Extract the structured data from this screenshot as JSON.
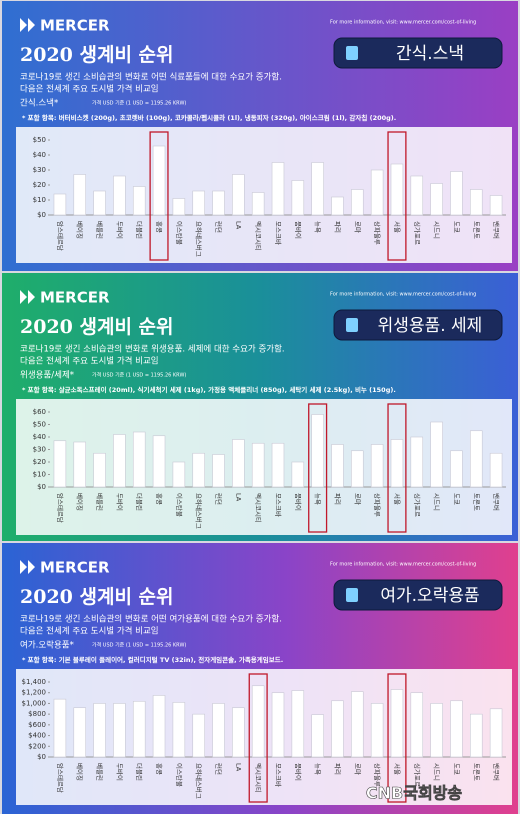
{
  "header": {
    "brand": "MERCER",
    "info": "For more information, visit: www.mercer.com/cost-of-living"
  },
  "footer": "CNB국회방송",
  "chart_data": [
    {
      "type": "bar",
      "title": "2020 생계비 순위",
      "badge": "간식.스낵",
      "description": [
        "코로나19로 생긴 소비습관의 변화로 어떤 식료품들에 대한 수요가 증가함.",
        "다음은 전세계 주요 도시별 가격 비교임"
      ],
      "subtitle_label": "간식.스낵*",
      "subtitle_note": "가격 USD 기준 (1 USD = 1195.26 KRW)",
      "items": "* 포함 항목: 버터비스켓 (200g), 초코렛바 (100g), 코카콜라/펩시콜라 (1l), 냉동피자 (320g), 아이스크림 (1l), 감자칩 (200g).",
      "categories": [
        "암스테르담",
        "베이징",
        "베를린",
        "두바이",
        "더블린",
        "홍콩",
        "이스탄불",
        "요하네스버그",
        "런던",
        "LA",
        "멕시코시티",
        "모스크바",
        "뭄바이",
        "뉴욕",
        "파리",
        "로마",
        "상파울루",
        "서울",
        "싱가포르",
        "시드니",
        "도쿄",
        "토론토",
        "밴쿠버"
      ],
      "values": [
        14,
        27,
        16,
        26,
        19,
        46,
        11,
        16,
        16,
        27,
        15,
        35,
        23,
        35,
        12,
        17,
        30,
        34,
        26,
        21,
        29,
        17,
        13
      ],
      "color": "#ffffff",
      "highlight": [
        5,
        17
      ],
      "ylim": [
        0,
        50
      ],
      "yticks": [
        {
          "value": 0,
          "label": "$0"
        },
        {
          "value": 10,
          "label": "$10"
        },
        {
          "value": 20,
          "label": "$20"
        },
        {
          "value": 30,
          "label": "$30"
        },
        {
          "value": 40,
          "label": "$40"
        },
        {
          "value": 50,
          "label": "$50"
        }
      ]
    },
    {
      "type": "bar",
      "title": "2020 생계비 순위",
      "badge": "위생용품. 세제",
      "description": [
        "코로나19로 생긴 소비습관의 변화로 위생용품. 세제에 대한 수요가 증가함.",
        "다음은 전세계 주요 도시별 가격 비교임"
      ],
      "subtitle_label": "위생용품/세제*",
      "subtitle_note": "가격 USD 기준 (1 USD = 1195.26 KRW)",
      "items": "* 포함 항목: 살균소독스프레이 (20ml), 식기세척기 세제 (1kg), 가정용 액체클리너 (850g), 세탁기 세제 (2.5kg), 비누 (150g).",
      "categories": [
        "암스테르담",
        "베이징",
        "베를린",
        "두바이",
        "더블린",
        "홍콩",
        "이스탄불",
        "요하네스버그",
        "런던",
        "LA",
        "멕시코시티",
        "모스크바",
        "뭄바이",
        "뉴욕",
        "파리",
        "로마",
        "상파울루",
        "서울",
        "싱가포르",
        "시드니",
        "도쿄",
        "토론토",
        "밴쿠버"
      ],
      "values": [
        37,
        36,
        27,
        42,
        44,
        41,
        20,
        27,
        26,
        38,
        35,
        35,
        20,
        58,
        34,
        29,
        34,
        38,
        40,
        52,
        29,
        45,
        27
      ],
      "color": "#ffffff",
      "highlight": [
        13,
        17
      ],
      "ylim": [
        0,
        60
      ],
      "yticks": [
        {
          "value": 0,
          "label": "$0"
        },
        {
          "value": 10,
          "label": "$10"
        },
        {
          "value": 20,
          "label": "$20"
        },
        {
          "value": 30,
          "label": "$30"
        },
        {
          "value": 40,
          "label": "$40"
        },
        {
          "value": 50,
          "label": "$50"
        },
        {
          "value": 60,
          "label": "$60"
        }
      ]
    },
    {
      "type": "bar",
      "title": "2020 생계비 순위",
      "badge": "여가.오락용품",
      "description": [
        "코로나19로 생긴 소비습관의 변화로 어떤 여가용품에 대한 수요가 증가함.",
        "다음은 전세계 주요 도시별 가격 비교임"
      ],
      "subtitle_label": "여가.오락용품*",
      "subtitle_note": "가격 USD 기준 (1 USD = 1195.26 KRW)",
      "items": "* 포함 항목: 기본 블루레이 플레이어, 컬러디지털 TV (32in), 전자게임콘솔, 가족용게임보드.",
      "categories": [
        "암스테르담",
        "베이징",
        "베를린",
        "두바이",
        "더블린",
        "홍콩",
        "이스탄불",
        "요하네스버그",
        "런던",
        "LA",
        "멕시코시티",
        "모스크바",
        "뭄바이",
        "뉴욕",
        "파리",
        "로마",
        "상파울루",
        "서울",
        "싱가포르",
        "시드니",
        "도쿄",
        "토론토",
        "밴쿠버"
      ],
      "values": [
        1080,
        920,
        1000,
        1000,
        1040,
        1150,
        1020,
        800,
        1000,
        920,
        1330,
        1200,
        1240,
        790,
        1050,
        1220,
        1000,
        1260,
        1200,
        1000,
        1050,
        800,
        900
      ],
      "color": "#ffffff",
      "highlight": [
        10,
        17
      ],
      "ylim": [
        0,
        1400
      ],
      "yticks": [
        {
          "value": 0,
          "label": "$0"
        },
        {
          "value": 200,
          "label": "$200"
        },
        {
          "value": 400,
          "label": "$400"
        },
        {
          "value": 600,
          "label": "$600"
        },
        {
          "value": 800,
          "label": "$800"
        },
        {
          "value": 1000,
          "label": "$1,000"
        },
        {
          "value": 1200,
          "label": "$1,200"
        },
        {
          "value": 1400,
          "label": "$1,400"
        }
      ]
    }
  ]
}
